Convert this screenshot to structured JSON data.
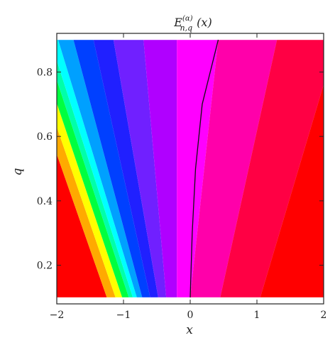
{
  "chart_data": {
    "type": "heatmap",
    "title": {
      "main": "E",
      "superscript": "(α)",
      "subscript": "n,q",
      "suffix": "(x)"
    },
    "xlabel": "x",
    "ylabel": "q",
    "xlim": [
      -2,
      2
    ],
    "ylim": [
      0.08,
      0.92
    ],
    "plot_region": {
      "x": [
        -2,
        2
      ],
      "q": [
        0.1,
        0.9
      ]
    },
    "x_ticks": [
      {
        "value": -2,
        "label": "−2"
      },
      {
        "value": -1,
        "label": "−1"
      },
      {
        "value": 0,
        "label": "0"
      },
      {
        "value": 1,
        "label": "1"
      },
      {
        "value": 2,
        "label": "2"
      }
    ],
    "y_ticks": [
      {
        "value": 0.2,
        "label": "0.2"
      },
      {
        "value": 0.4,
        "label": "0.4"
      },
      {
        "value": 0.6,
        "label": "0.6"
      },
      {
        "value": 0.8,
        "label": "0.8"
      }
    ],
    "color_bands": [
      {
        "color": "#ff0000"
      },
      {
        "color": "#ffaa00"
      },
      {
        "color": "#ffff00"
      },
      {
        "color": "#00ff40"
      },
      {
        "color": "#00ffaa"
      },
      {
        "color": "#00ffff"
      },
      {
        "color": "#00a0ff"
      },
      {
        "color": "#0040ff"
      },
      {
        "color": "#2020ff"
      },
      {
        "color": "#7020ff"
      },
      {
        "color": "#b000ff"
      },
      {
        "color": "#ff00ff"
      },
      {
        "color": "#ff00aa"
      },
      {
        "color": "#ff0044"
      },
      {
        "color": "#ff0000"
      }
    ],
    "zero_contour": [
      {
        "x": 0.0,
        "q": 0.1
      },
      {
        "x": 0.03,
        "q": 0.3
      },
      {
        "x": 0.08,
        "q": 0.5
      },
      {
        "x": 0.18,
        "q": 0.7
      },
      {
        "x": 0.42,
        "q": 0.9
      }
    ],
    "grid": false,
    "legend": "none"
  }
}
